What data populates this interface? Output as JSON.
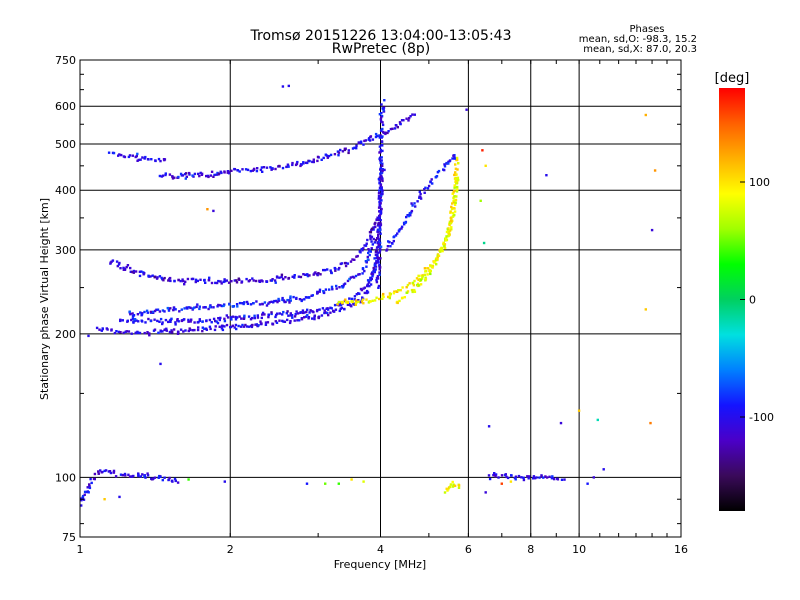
{
  "chart_data": {
    "type": "scatter",
    "title": "Tromsø 20151226 13:04:00-13:05:43",
    "subtitle": "RwPretec (8p)",
    "xlabel": "Frequency [MHz]",
    "ylabel": "Stationary phase Virtual Height [km]",
    "x_scale": "log",
    "y_scale": "log",
    "xlim": [
      1,
      16
    ],
    "ylim": [
      75,
      750
    ],
    "x_ticks": [
      1,
      2,
      4,
      6,
      8,
      10,
      16
    ],
    "y_ticks": [
      75,
      100,
      200,
      300,
      400,
      500,
      600,
      750
    ],
    "grid": true,
    "stats": {
      "heading": "Phases",
      "o_line": "mean, sd,O: -98.3, 15.2",
      "x_line": "mean, sd,X:  87.0, 20.3"
    },
    "colorbar": {
      "label": "[deg]",
      "range": [
        -180,
        180
      ],
      "ticks": [
        -100,
        0,
        100
      ],
      "colors": [
        "#000000",
        "#3a0a5a",
        "#4b00c8",
        "#1414ff",
        "#0080ff",
        "#00e0e0",
        "#00d060",
        "#00ff00",
        "#a0ff00",
        "#ffff00",
        "#ffb000",
        "#ff6000",
        "#ff0000"
      ]
    },
    "traces": [
      {
        "name": "",
        "phase": -105,
        "x": [
          1.08,
          1.15,
          1.2,
          1.3,
          1.4,
          1.6,
          1.8,
          2.0,
          2.3,
          2.6,
          3.0,
          3.3,
          3.6,
          3.8,
          3.95,
          4.05
        ],
        "y": [
          205,
          203,
          202,
          201,
          202,
          203,
          205,
          207,
          209,
          212,
          217,
          224,
          233,
          250,
          300,
          450
        ]
      },
      {
        "name": "",
        "phase": -100,
        "x": [
          1.2,
          1.3,
          1.5,
          1.8,
          2.0,
          2.4,
          2.8,
          3.2,
          3.5,
          3.8,
          4.0
        ],
        "y": [
          214,
          213,
          213,
          213,
          215,
          218,
          222,
          228,
          236,
          255,
          290
        ]
      },
      {
        "name": "",
        "phase": -95,
        "x": [
          1.25,
          1.35,
          1.5,
          1.8,
          2.0,
          2.4,
          2.8,
          3.1,
          3.4,
          3.7,
          3.9
        ],
        "y": [
          220,
          222,
          224,
          227,
          230,
          233,
          238,
          245,
          255,
          272,
          320
        ]
      },
      {
        "name": "",
        "phase": -110,
        "x": [
          1.15,
          1.2,
          1.3,
          1.45,
          1.6,
          1.8,
          2.0,
          2.3,
          2.6,
          2.9,
          3.2,
          3.4,
          3.6,
          3.8,
          4.0
        ],
        "y": [
          285,
          278,
          268,
          262,
          259,
          258,
          258,
          259,
          262,
          266,
          272,
          280,
          292,
          315,
          360
        ]
      },
      {
        "name": "",
        "phase": -100,
        "x": [
          1.15,
          1.25,
          1.35,
          1.45,
          1.5
        ],
        "y": [
          480,
          470,
          465,
          463,
          462
        ]
      },
      {
        "name": "",
        "phase": -105,
        "x": [
          1.45,
          1.6,
          1.8,
          2.0,
          2.3,
          2.6,
          2.9,
          3.2,
          3.5,
          3.8,
          4.1,
          4.4,
          4.7
        ],
        "y": [
          430,
          428,
          432,
          438,
          442,
          450,
          460,
          475,
          490,
          510,
          530,
          555,
          580
        ]
      },
      {
        "name": "",
        "phase": -100,
        "x": [
          3.95,
          3.98,
          4.0,
          4.02,
          4.05
        ],
        "y": [
          250,
          330,
          420,
          520,
          620
        ]
      },
      {
        "name": "",
        "phase": 95,
        "x": [
          3.3,
          3.6,
          3.9,
          4.2,
          4.5,
          4.8,
          5.1,
          5.3,
          5.5,
          5.6,
          5.7
        ],
        "y": [
          232,
          233,
          236,
          242,
          250,
          262,
          280,
          300,
          330,
          380,
          470
        ]
      },
      {
        "name": "",
        "phase": 85,
        "x": [
          4.3,
          4.6,
          4.9,
          5.2,
          5.4,
          5.6,
          5.7
        ],
        "y": [
          232,
          245,
          262,
          285,
          310,
          360,
          430
        ]
      },
      {
        "name": "",
        "phase": -95,
        "x": [
          4.1,
          4.3,
          4.5,
          4.7,
          4.9,
          5.2,
          5.5,
          5.7
        ],
        "y": [
          300,
          320,
          345,
          375,
          400,
          430,
          460,
          480
        ]
      },
      {
        "name": "",
        "phase": -105,
        "x": [
          1.0,
          1.05,
          1.1,
          1.15,
          1.2,
          1.3,
          1.4,
          1.5,
          1.6
        ],
        "y": [
          88,
          98,
          103,
          102,
          101,
          101,
          100,
          99,
          98
        ]
      },
      {
        "name": "",
        "phase": 90,
        "x": [
          5.4,
          5.5,
          5.6,
          5.7,
          5.8
        ],
        "y": [
          93,
          95,
          97,
          96,
          94
        ]
      },
      {
        "name": "",
        "phase": -100,
        "x": [
          6.6,
          7.0,
          7.5,
          8.0,
          8.5,
          9.0,
          9.4
        ],
        "y": [
          100,
          101,
          100,
          100,
          100,
          99,
          99
        ]
      }
    ],
    "points": [
      {
        "x": 2.55,
        "y": 660,
        "phase": -100
      },
      {
        "x": 2.62,
        "y": 662,
        "phase": -100
      },
      {
        "x": 5.95,
        "y": 590,
        "phase": -110
      },
      {
        "x": 6.4,
        "y": 485,
        "phase": 170
      },
      {
        "x": 6.5,
        "y": 450,
        "phase": 100
      },
      {
        "x": 6.35,
        "y": 380,
        "phase": 60
      },
      {
        "x": 6.45,
        "y": 310,
        "phase": -10
      },
      {
        "x": 8.6,
        "y": 430,
        "phase": -100
      },
      {
        "x": 13.6,
        "y": 575,
        "phase": 120
      },
      {
        "x": 14.2,
        "y": 440,
        "phase": 130
      },
      {
        "x": 14.0,
        "y": 330,
        "phase": -110
      },
      {
        "x": 13.6,
        "y": 225,
        "phase": 110
      },
      {
        "x": 1.8,
        "y": 365,
        "phase": 130
      },
      {
        "x": 1.85,
        "y": 362,
        "phase": -110
      },
      {
        "x": 1.04,
        "y": 198,
        "phase": -100
      },
      {
        "x": 1.45,
        "y": 173,
        "phase": -100
      },
      {
        "x": 6.6,
        "y": 128,
        "phase": -100
      },
      {
        "x": 9.2,
        "y": 130,
        "phase": -110
      },
      {
        "x": 10.0,
        "y": 138,
        "phase": 110
      },
      {
        "x": 10.9,
        "y": 132,
        "phase": -20
      },
      {
        "x": 13.9,
        "y": 130,
        "phase": 140
      },
      {
        "x": 6.5,
        "y": 93,
        "phase": -110
      },
      {
        "x": 1.95,
        "y": 98,
        "phase": -100
      },
      {
        "x": 1.65,
        "y": 99,
        "phase": 40
      },
      {
        "x": 2.85,
        "y": 97,
        "phase": -90
      },
      {
        "x": 3.1,
        "y": 97,
        "phase": 50
      },
      {
        "x": 3.3,
        "y": 97,
        "phase": 40
      },
      {
        "x": 3.5,
        "y": 99,
        "phase": 100
      },
      {
        "x": 3.7,
        "y": 98,
        "phase": 80
      },
      {
        "x": 10.7,
        "y": 100,
        "phase": -110
      },
      {
        "x": 11.2,
        "y": 104,
        "phase": -100
      },
      {
        "x": 10.4,
        "y": 97,
        "phase": -90
      },
      {
        "x": 1.12,
        "y": 90,
        "phase": 110
      },
      {
        "x": 1.2,
        "y": 91,
        "phase": -100
      },
      {
        "x": 7.0,
        "y": 97,
        "phase": 160
      },
      {
        "x": 7.3,
        "y": 98,
        "phase": 100
      }
    ]
  }
}
